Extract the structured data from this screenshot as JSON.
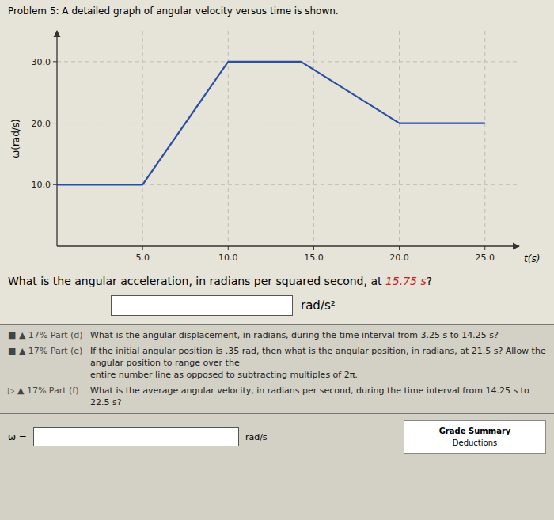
{
  "chart_data": {
    "type": "line",
    "title": "Problem 5: A detailed graph of angular velocity versus time is shown.",
    "x_label": "t(s)",
    "y_label": "ω(rad/s)",
    "x": [
      0,
      5,
      5,
      10,
      14.25,
      20,
      25
    ],
    "series": [
      {
        "color": "#2B4FA0",
        "values": [
          10,
          10,
          10,
          30,
          30,
          20,
          20
        ]
      }
    ],
    "xlim": [
      0,
      27
    ],
    "ylim": [
      0,
      35
    ],
    "xticks": [
      {
        "value": 5.0,
        "label": "5.0"
      },
      {
        "value": 10.0,
        "label": "10.0"
      },
      {
        "value": 15.0,
        "label": "15.0"
      },
      {
        "value": 20.0,
        "label": "20.0"
      },
      {
        "value": 25.0,
        "label": "25.0"
      }
    ],
    "yticks": [
      {
        "value": 10.0,
        "label": "10.0"
      },
      {
        "value": 20.0,
        "label": "20.0"
      },
      {
        "value": 30.0,
        "label": "30.0"
      }
    ],
    "grid": true,
    "annotations": [
      {
        "text": "What is the angular acceleration, in radians per squared second, at "
      },
      {
        "text": "15.75 s",
        "color": "#CC2222"
      },
      {
        "text": "?"
      },
      {
        "text": "rad/s²"
      },
      {
        "text": "■ ▲ 17% Part (d)"
      },
      {
        "text": "What is the angular displacement, in radians, during the time interval from 3.25 s to 14.25 s?"
      },
      {
        "text": "■ ▲ 17% Part (e)"
      },
      {
        "text": "If the initial angular position is .35 rad, then what is the angular position, in radians, at 21.5 s? Allow the angular position to range over the"
      },
      {
        "text": "entire number line as opposed to subtracting multiples of 2π."
      },
      {
        "text": "▷ ▲ 17% Part (f)"
      },
      {
        "text": "What is the average angular velocity, in radians per second, during the time interval from 14.25 s to 22.5 s?"
      },
      {
        "text": "ω ="
      },
      {
        "text": "rad/s"
      },
      {
        "text": "Grade Summary"
      },
      {
        "text": "Deductions"
      }
    ]
  }
}
